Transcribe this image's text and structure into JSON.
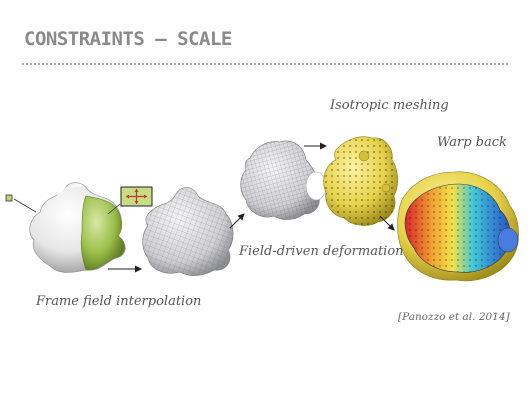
{
  "title": "CONSTRAINTS – SCALE",
  "stages": {
    "frame_field": "Frame field interpolation",
    "field_driven": [
      "Field-driven",
      "deformation"
    ],
    "isotropic": [
      "Isotropic",
      "meshing"
    ],
    "warp_back": [
      "Warp",
      "back"
    ]
  },
  "citation": "[Panozzo et al. 2014]",
  "colors": {
    "title": "#8a8a8a",
    "accent_green": "#9bbf4a",
    "mesh_yellow": "#e6d24a",
    "grid_gray": "#c8c8cc"
  },
  "icons": [
    "frame-widget-icon",
    "small-square-icon"
  ]
}
